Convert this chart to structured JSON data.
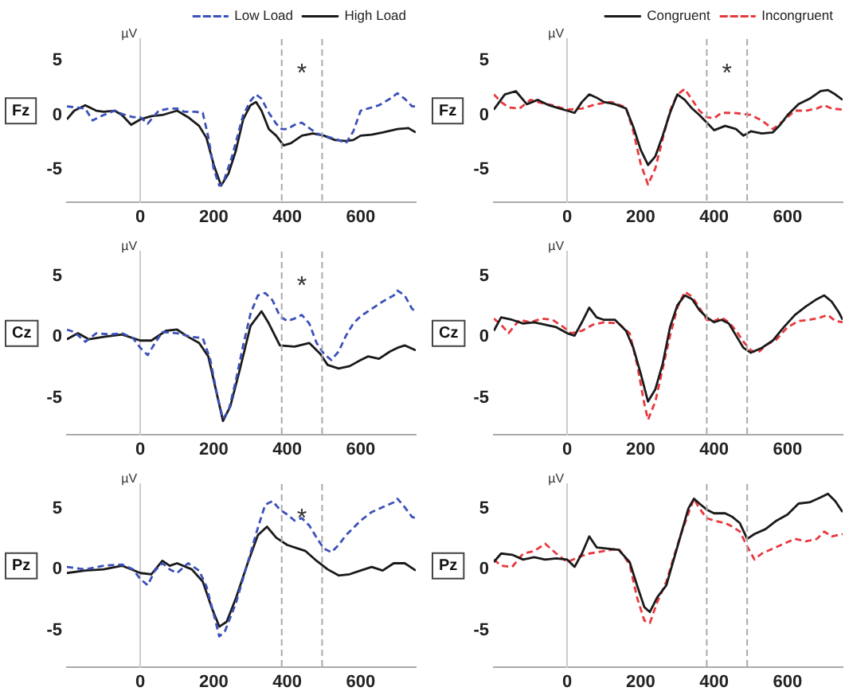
{
  "chart_data": [
    {
      "type": "line",
      "title": "Fz",
      "ylabel": "µV",
      "xlim": [
        -200,
        750
      ],
      "ylim": [
        -8,
        7
      ],
      "xticks": [
        0,
        200,
        400,
        600
      ],
      "yticks": [
        -5,
        0,
        5
      ],
      "legend": "top right",
      "series": [
        {
          "name": "Low Load",
          "color": "#3b50b8",
          "line_style": "dashed",
          "x": [
            -200,
            -150,
            -130,
            -100,
            -70,
            -50,
            -20,
            0,
            20,
            40,
            50,
            80,
            100,
            120,
            150,
            170,
            185,
            200,
            215,
            225,
            250,
            280,
            300,
            315,
            330,
            350,
            370,
            385,
            400,
            420,
            440,
            460,
            480,
            500,
            520,
            540,
            560,
            580,
            600,
            620,
            650,
            680,
            700,
            720,
            740,
            750
          ],
          "values": [
            0.8,
            0.6,
            -0.5,
            0,
            0.4,
            0.1,
            -0.2,
            -0.2,
            -0.8,
            0,
            0.4,
            0.6,
            0.6,
            0.3,
            0.3,
            0.2,
            -2,
            -5,
            -6.5,
            -6.3,
            -3.8,
            0,
            1.3,
            1.9,
            1.5,
            0.2,
            -0.8,
            -1.3,
            -1.3,
            -0.9,
            -0.7,
            -1.2,
            -1.7,
            -1.9,
            -2.1,
            -2.3,
            -2.6,
            -1.5,
            0.4,
            0.6,
            0.9,
            1.5,
            2,
            1.5,
            0.8,
            0.8
          ]
        },
        {
          "name": "High Load",
          "color": "#1a1a1a",
          "line_style": "solid",
          "x": [
            -200,
            -180,
            -150,
            -120,
            -100,
            -70,
            -50,
            -25,
            0,
            30,
            60,
            100,
            130,
            160,
            180,
            200,
            220,
            240,
            260,
            280,
            300,
            315,
            330,
            350,
            370,
            390,
            410,
            440,
            470,
            500,
            530,
            560,
            580,
            600,
            630,
            660,
            700,
            730,
            750
          ],
          "values": [
            -0.4,
            0.4,
            0.9,
            0.4,
            0.3,
            0.4,
            0,
            -0.9,
            -0.4,
            -0.1,
            0,
            0.4,
            -0.2,
            -1,
            -2.1,
            -4.6,
            -6.5,
            -5.4,
            -3.3,
            -0.4,
            0.9,
            1.2,
            0.4,
            -1.3,
            -1.9,
            -2.8,
            -2.6,
            -1.9,
            -1.7,
            -1.9,
            -2.3,
            -2.4,
            -2.3,
            -1.9,
            -1.8,
            -1.6,
            -1.3,
            -1.2,
            -1.6
          ]
        }
      ],
      "ref_lines": [
        {
          "axis": "x",
          "value": 385,
          "color": "#aaaaaa",
          "line_style": "dashed"
        },
        {
          "axis": "x",
          "value": 495,
          "color": "#aaaaaa",
          "line_style": "dashed"
        }
      ],
      "annotations": [
        "*"
      ]
    },
    {
      "type": "line",
      "title": "Fz",
      "ylabel": "µV",
      "xlim": [
        -200,
        750
      ],
      "ylim": [
        -8,
        7
      ],
      "xticks": [
        0,
        200,
        400,
        600
      ],
      "yticks": [
        -5,
        0,
        5
      ],
      "legend": "top right",
      "series": [
        {
          "name": "Congruent",
          "color": "#1a1a1a",
          "line_style": "solid",
          "x": [
            -200,
            -170,
            -140,
            -110,
            -80,
            -50,
            -20,
            0,
            20,
            40,
            60,
            80,
            100,
            130,
            160,
            180,
            200,
            220,
            240,
            260,
            280,
            300,
            320,
            340,
            360,
            380,
            400,
            430,
            460,
            480,
            500,
            530,
            560,
            580,
            600,
            630,
            660,
            690,
            710,
            730,
            750
          ],
          "values": [
            0.5,
            1.9,
            2.2,
            1,
            1.4,
            0.9,
            0.6,
            0.4,
            0.2,
            1.2,
            1.9,
            1.6,
            1.2,
            1,
            0.6,
            -1.1,
            -3.2,
            -4.6,
            -3.8,
            -1.9,
            0.2,
            1.9,
            1.4,
            0.6,
            0,
            -0.7,
            -1.4,
            -1,
            -1.3,
            -1.9,
            -1.5,
            -1.7,
            -1.6,
            -0.9,
            0,
            1,
            1.5,
            2.2,
            2.3,
            1.9,
            1.4
          ]
        },
        {
          "name": "Incongruent",
          "color": "#e8383d",
          "line_style": "dashed",
          "x": [
            -200,
            -180,
            -160,
            -130,
            -100,
            -70,
            -40,
            0,
            40,
            80,
            120,
            160,
            180,
            200,
            220,
            240,
            260,
            280,
            300,
            320,
            340,
            360,
            380,
            400,
            420,
            450,
            480,
            500,
            530,
            560,
            590,
            620,
            650,
            680,
            700,
            720,
            750
          ],
          "values": [
            1.9,
            1.2,
            0.7,
            0.6,
            1.4,
            1.1,
            0.9,
            0.5,
            0.6,
            1,
            1.2,
            0.7,
            -1.5,
            -4.5,
            -6.4,
            -4.9,
            -2.2,
            0.4,
            1.9,
            2.4,
            1.4,
            0.4,
            -0.2,
            -0.3,
            0.2,
            0.2,
            0.1,
            0,
            -0.5,
            -1.3,
            -0.5,
            0.4,
            0.4,
            0.6,
            0.9,
            0.6,
            0.5
          ]
        }
      ],
      "ref_lines": [
        {
          "axis": "x",
          "value": 380,
          "color": "#aaaaaa",
          "line_style": "dashed"
        },
        {
          "axis": "x",
          "value": 490,
          "color": "#aaaaaa",
          "line_style": "dashed"
        }
      ],
      "annotations": [
        "*"
      ]
    },
    {
      "type": "line",
      "title": "Cz",
      "ylabel": "µV",
      "xlim": [
        -200,
        750
      ],
      "ylim": [
        -8,
        7
      ],
      "xticks": [
        0,
        200,
        400,
        600
      ],
      "yticks": [
        -5,
        0,
        5
      ],
      "series": [
        {
          "color": "#3b50b8",
          "line_style": "dashed",
          "x": [
            -200,
            -180,
            -150,
            -120,
            -80,
            -50,
            -20,
            0,
            20,
            40,
            60,
            100,
            140,
            170,
            190,
            210,
            225,
            240,
            260,
            280,
            300,
            320,
            340,
            360,
            380,
            400,
            420,
            440,
            460,
            480,
            500,
            520,
            540,
            560,
            580,
            600,
            630,
            660,
            690,
            700,
            720,
            740,
            750
          ],
          "values": [
            0.6,
            0.4,
            -0.4,
            0.3,
            0.2,
            0.3,
            -0.1,
            -0.9,
            -1.5,
            -0.5,
            0.4,
            0.3,
            0,
            -0.1,
            -1.8,
            -4.9,
            -6.7,
            -6.1,
            -3.6,
            -0.7,
            1.9,
            3.4,
            3.6,
            3,
            1.7,
            1.3,
            1.5,
            1.8,
            1.1,
            -0.5,
            -1.4,
            -1.9,
            -1.2,
            0.1,
            1.1,
            1.7,
            2.3,
            2.9,
            3.4,
            3.8,
            3.4,
            2.3,
            2.1
          ]
        },
        {
          "color": "#1a1a1a",
          "line_style": "solid",
          "x": [
            -200,
            -170,
            -140,
            -100,
            -50,
            0,
            30,
            70,
            100,
            130,
            160,
            185,
            210,
            225,
            245,
            270,
            300,
            330,
            350,
            380,
            420,
            460,
            490,
            510,
            540,
            570,
            600,
            620,
            650,
            680,
            700,
            720,
            750
          ],
          "values": [
            -0.2,
            0.3,
            -0.2,
            0,
            0.2,
            -0.3,
            -0.3,
            0.5,
            0.6,
            0,
            -0.5,
            -1.6,
            -4.9,
            -6.9,
            -5.7,
            -2.8,
            0.9,
            2.1,
            1.1,
            -0.7,
            -0.8,
            -0.5,
            -1.4,
            -2.3,
            -2.6,
            -2.4,
            -1.9,
            -1.6,
            -1.8,
            -1.2,
            -0.9,
            -0.7,
            -1.1
          ]
        }
      ],
      "ref_lines": [
        {
          "axis": "x",
          "value": 385,
          "color": "#aaaaaa",
          "line_style": "dashed"
        },
        {
          "axis": "x",
          "value": 495,
          "color": "#aaaaaa",
          "line_style": "dashed"
        }
      ],
      "annotations": [
        "*"
      ]
    },
    {
      "type": "line",
      "title": "Cz",
      "ylabel": "µV",
      "xlim": [
        -200,
        750
      ],
      "ylim": [
        -8,
        7
      ],
      "xticks": [
        0,
        200,
        400,
        600
      ],
      "yticks": [
        -5,
        0,
        5
      ],
      "series": [
        {
          "color": "#1a1a1a",
          "line_style": "solid",
          "x": [
            -200,
            -180,
            -150,
            -120,
            -90,
            -60,
            -30,
            0,
            20,
            40,
            60,
            80,
            100,
            130,
            160,
            180,
            200,
            220,
            240,
            260,
            280,
            300,
            320,
            340,
            360,
            380,
            400,
            420,
            440,
            460,
            480,
            500,
            530,
            560,
            590,
            620,
            650,
            680,
            700,
            720,
            740,
            750
          ],
          "values": [
            0.5,
            1.6,
            1.4,
            1.1,
            1.2,
            1,
            0.8,
            0.3,
            0.1,
            1.2,
            2.4,
            1.6,
            1.4,
            1.4,
            0.5,
            -0.9,
            -3,
            -5.3,
            -4.3,
            -2.2,
            0.8,
            2.6,
            3.4,
            3.1,
            2.2,
            1.6,
            1.2,
            1.4,
            1.1,
            0.1,
            -0.9,
            -1.3,
            -0.9,
            -0.3,
            0.8,
            1.8,
            2.5,
            3.1,
            3.4,
            2.9,
            2,
            1.4
          ]
        },
        {
          "color": "#e8383d",
          "line_style": "dashed",
          "x": [
            -200,
            -180,
            -160,
            -130,
            -100,
            -70,
            -40,
            -10,
            10,
            40,
            70,
            100,
            140,
            170,
            190,
            210,
            220,
            240,
            260,
            280,
            300,
            320,
            340,
            360,
            380,
            400,
            420,
            440,
            460,
            480,
            500,
            520,
            540,
            570,
            600,
            630,
            660,
            690,
            710,
            730,
            750
          ],
          "values": [
            1.5,
            1,
            0.3,
            1.4,
            1.2,
            1.5,
            1.4,
            0.8,
            0.3,
            0.5,
            1,
            1.2,
            1.1,
            0.3,
            -2.2,
            -5.5,
            -6.8,
            -5.3,
            -2.6,
            0.1,
            2.4,
            3.7,
            3.3,
            2.4,
            1.4,
            1.3,
            1.6,
            1.2,
            0.5,
            -0.4,
            -1.1,
            -1.3,
            -0.7,
            -0.2,
            0.8,
            1.3,
            1.4,
            1.6,
            1.8,
            1.3,
            1.2
          ]
        }
      ],
      "ref_lines": [
        {
          "axis": "x",
          "value": 380,
          "color": "#aaaaaa",
          "line_style": "dashed"
        },
        {
          "axis": "x",
          "value": 490,
          "color": "#aaaaaa",
          "line_style": "dashed"
        }
      ]
    },
    {
      "type": "line",
      "title": "Pz",
      "ylabel": "µV",
      "xlim": [
        -200,
        750
      ],
      "ylim": [
        -8,
        7
      ],
      "xticks": [
        0,
        200,
        400,
        600
      ],
      "yticks": [
        -5,
        0,
        5
      ],
      "series": [
        {
          "color": "#3b50b8",
          "line_style": "dashed",
          "x": [
            -200,
            -150,
            -100,
            -50,
            -20,
            0,
            20,
            40,
            60,
            80,
            100,
            130,
            160,
            180,
            200,
            215,
            230,
            260,
            290,
            320,
            340,
            360,
            380,
            400,
            420,
            440,
            460,
            480,
            500,
            520,
            540,
            560,
            580,
            600,
            630,
            660,
            690,
            700,
            720,
            740,
            750
          ],
          "values": [
            0.2,
            0,
            0.3,
            0.4,
            0,
            -0.8,
            -1.3,
            -0.1,
            0.5,
            0,
            -0.3,
            0.5,
            -0.1,
            -1.4,
            -3.7,
            -5.5,
            -5.1,
            -2.8,
            0.3,
            3.4,
            5.3,
            5.6,
            4.9,
            4.5,
            4,
            4.2,
            3.6,
            2.6,
            1.7,
            1.4,
            2,
            2.8,
            3.4,
            4,
            4.7,
            5.1,
            5.5,
            5.8,
            5.1,
            4.3,
            4.2
          ]
        },
        {
          "color": "#1a1a1a",
          "line_style": "solid",
          "x": [
            -200,
            -150,
            -100,
            -50,
            0,
            30,
            60,
            80,
            100,
            140,
            170,
            195,
            215,
            235,
            260,
            290,
            320,
            345,
            370,
            400,
            430,
            450,
            480,
            510,
            540,
            570,
            600,
            630,
            660,
            690,
            720,
            750
          ],
          "values": [
            -0.3,
            -0.1,
            0,
            0.3,
            -0.3,
            -0.4,
            0.7,
            0.3,
            0.5,
            0,
            -1,
            -3.2,
            -4.7,
            -4.3,
            -2.4,
            0.3,
            2.8,
            3.5,
            2.6,
            2,
            1.7,
            1.5,
            0.7,
            0,
            -0.5,
            -0.4,
            -0.1,
            0.2,
            -0.1,
            0.5,
            0.5,
            -0.1
          ]
        }
      ],
      "ref_lines": [
        {
          "axis": "x",
          "value": 385,
          "color": "#aaaaaa",
          "line_style": "dashed"
        },
        {
          "axis": "x",
          "value": 495,
          "color": "#aaaaaa",
          "line_style": "dashed"
        }
      ],
      "annotations": [
        "*"
      ]
    },
    {
      "type": "line",
      "title": "Pz",
      "ylabel": "µV",
      "xlim": [
        -200,
        750
      ],
      "ylim": [
        -8,
        7
      ],
      "xticks": [
        0,
        200,
        400,
        600
      ],
      "yticks": [
        -5,
        0,
        5
      ],
      "series": [
        {
          "color": "#1a1a1a",
          "line_style": "solid",
          "x": [
            -200,
            -180,
            -150,
            -120,
            -90,
            -60,
            -30,
            0,
            20,
            40,
            60,
            80,
            110,
            140,
            170,
            190,
            210,
            225,
            245,
            270,
            290,
            310,
            330,
            345,
            360,
            380,
            400,
            430,
            450,
            470,
            490,
            510,
            540,
            570,
            600,
            630,
            660,
            690,
            710,
            730,
            750
          ],
          "values": [
            0.6,
            1.3,
            1.2,
            0.8,
            1,
            0.8,
            0.9,
            0.8,
            0.2,
            1.3,
            2.7,
            1.8,
            1.7,
            1.6,
            0.6,
            -1.3,
            -3.1,
            -3.5,
            -2.3,
            -1.3,
            0.8,
            2.9,
            5,
            5.8,
            5.4,
            4.9,
            4.6,
            4.6,
            4.3,
            3.8,
            2.5,
            2.9,
            3.3,
            4,
            4.5,
            5.4,
            5.5,
            5.9,
            6.2,
            5.6,
            4.7
          ]
        },
        {
          "color": "#e8383d",
          "line_style": "dashed",
          "x": [
            -200,
            -180,
            -150,
            -120,
            -90,
            -60,
            -30,
            0,
            30,
            60,
            100,
            140,
            170,
            190,
            210,
            225,
            245,
            270,
            290,
            310,
            330,
            345,
            360,
            380,
            400,
            430,
            450,
            470,
            490,
            510,
            530,
            560,
            590,
            620,
            650,
            680,
            700,
            720,
            750
          ],
          "values": [
            0.8,
            0.3,
            0.2,
            1.3,
            1.5,
            2.1,
            1.3,
            0.6,
            1,
            1.3,
            1.5,
            1.7,
            0.4,
            -2.3,
            -4.2,
            -4.4,
            -2.7,
            -1,
            1,
            2.9,
            4.6,
            5.8,
            5,
            4.2,
            4,
            3.8,
            3.5,
            3.1,
            1.9,
            0.8,
            1.3,
            1.7,
            2.1,
            2.5,
            2.3,
            2.5,
            3.1,
            2.7,
            2.9
          ]
        }
      ],
      "ref_lines": [
        {
          "axis": "x",
          "value": 380,
          "color": "#aaaaaa",
          "line_style": "dashed"
        },
        {
          "axis": "x",
          "value": 490,
          "color": "#aaaaaa",
          "line_style": "dashed"
        }
      ]
    }
  ]
}
